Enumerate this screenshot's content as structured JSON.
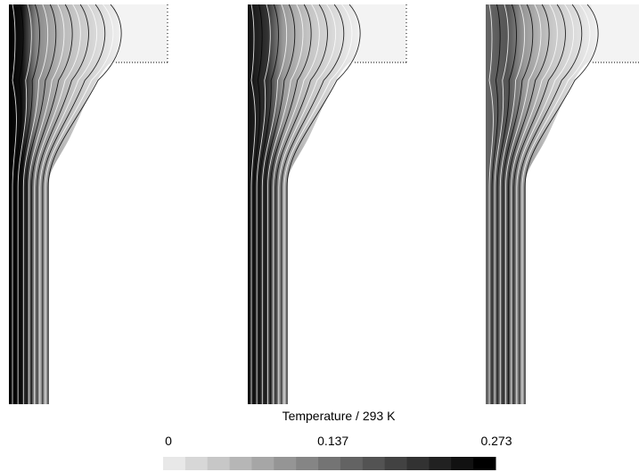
{
  "chart_data": {
    "type": "colorbar",
    "title": "Temperature / 293 K",
    "clim": [
      0,
      0.273
    ],
    "ticks": [
      0,
      0.137,
      0.273
    ]
  }
}
